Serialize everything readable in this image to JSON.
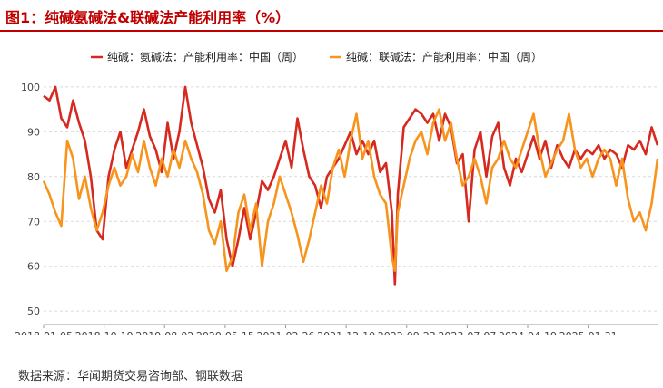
{
  "figure_title": "图1：纯碱氨碱法&联碱法产能利用率（%）",
  "source_note": "数据来源：华闻期货交易咨询部、钢联数据",
  "colors": {
    "title": "#c00000",
    "series1": "#d62a20",
    "series2": "#f7941d",
    "grid": "#d9d9d9"
  },
  "chart_data": {
    "type": "line",
    "title": "",
    "xlabel": "",
    "ylabel": "",
    "ylim": [
      47,
      102
    ],
    "xlim": [
      "2018-01-05",
      "2025-12-26"
    ],
    "yticks": [
      50,
      60,
      70,
      80,
      90,
      100
    ],
    "xticks": [
      "2018-01-05",
      "2018-10-19",
      "2019-08-02",
      "2020-05-15",
      "2021-02-26",
      "2021-12-10",
      "2022-09-23",
      "2023-07-07",
      "2024-04-19",
      "2025-01-31"
    ],
    "grid": "horizontal dashed",
    "legend_position": "top-center",
    "series": [
      {
        "name": "纯碱：氨碱法：产能利用率：中国（周）",
        "color": "#d62a20",
        "points": [
          [
            "2018-01-05",
            98
          ],
          [
            "2018-02-02",
            97
          ],
          [
            "2018-03-02",
            100
          ],
          [
            "2018-03-30",
            93
          ],
          [
            "2018-04-27",
            91
          ],
          [
            "2018-05-25",
            97
          ],
          [
            "2018-06-22",
            92
          ],
          [
            "2018-07-20",
            88
          ],
          [
            "2018-08-17",
            80
          ],
          [
            "2018-09-14",
            68
          ],
          [
            "2018-10-12",
            66
          ],
          [
            "2018-11-09",
            80
          ],
          [
            "2018-12-07",
            86
          ],
          [
            "2019-01-04",
            90
          ],
          [
            "2019-02-01",
            82
          ],
          [
            "2019-03-01",
            86
          ],
          [
            "2019-03-29",
            90
          ],
          [
            "2019-04-26",
            95
          ],
          [
            "2019-05-24",
            89
          ],
          [
            "2019-06-21",
            86
          ],
          [
            "2019-07-19",
            81
          ],
          [
            "2019-08-16",
            92
          ],
          [
            "2019-09-13",
            84
          ],
          [
            "2019-10-11",
            90
          ],
          [
            "2019-11-08",
            100
          ],
          [
            "2019-12-06",
            92
          ],
          [
            "2020-01-03",
            87
          ],
          [
            "2020-01-31",
            82
          ],
          [
            "2020-02-28",
            75
          ],
          [
            "2020-03-27",
            72
          ],
          [
            "2020-04-24",
            77
          ],
          [
            "2020-05-22",
            66
          ],
          [
            "2020-06-19",
            60
          ],
          [
            "2020-07-17",
            66
          ],
          [
            "2020-08-14",
            73
          ],
          [
            "2020-09-11",
            66
          ],
          [
            "2020-10-09",
            72
          ],
          [
            "2020-11-06",
            79
          ],
          [
            "2020-12-04",
            77
          ],
          [
            "2021-01-01",
            80
          ],
          [
            "2021-01-29",
            84
          ],
          [
            "2021-02-26",
            88
          ],
          [
            "2021-03-26",
            82
          ],
          [
            "2021-04-23",
            93
          ],
          [
            "2021-05-21",
            86
          ],
          [
            "2021-06-18",
            80
          ],
          [
            "2021-07-16",
            78
          ],
          [
            "2021-08-13",
            73
          ],
          [
            "2021-09-10",
            80
          ],
          [
            "2021-10-08",
            82
          ],
          [
            "2021-11-05",
            84
          ],
          [
            "2021-12-03",
            87
          ],
          [
            "2021-12-31",
            90
          ],
          [
            "2022-01-28",
            85
          ],
          [
            "2022-02-25",
            88
          ],
          [
            "2022-03-25",
            85
          ],
          [
            "2022-04-22",
            88
          ],
          [
            "2022-05-20",
            81
          ],
          [
            "2022-06-17",
            83
          ],
          [
            "2022-07-15",
            72
          ],
          [
            "2022-07-29",
            56
          ],
          [
            "2022-08-12",
            76
          ],
          [
            "2022-09-09",
            91
          ],
          [
            "2022-10-07",
            93
          ],
          [
            "2022-11-04",
            95
          ],
          [
            "2022-12-02",
            94
          ],
          [
            "2022-12-30",
            92
          ],
          [
            "2023-01-27",
            94
          ],
          [
            "2023-02-24",
            88
          ],
          [
            "2023-03-24",
            94
          ],
          [
            "2023-04-21",
            91
          ],
          [
            "2023-05-19",
            83
          ],
          [
            "2023-06-16",
            85
          ],
          [
            "2023-07-14",
            70
          ],
          [
            "2023-08-11",
            86
          ],
          [
            "2023-09-08",
            90
          ],
          [
            "2023-10-06",
            80
          ],
          [
            "2023-11-03",
            89
          ],
          [
            "2023-12-01",
            92
          ],
          [
            "2023-12-29",
            82
          ],
          [
            "2024-01-26",
            78
          ],
          [
            "2024-02-23",
            84
          ],
          [
            "2024-03-22",
            81
          ],
          [
            "2024-04-19",
            85
          ],
          [
            "2024-05-17",
            89
          ],
          [
            "2024-06-14",
            84
          ],
          [
            "2024-07-12",
            88
          ],
          [
            "2024-08-09",
            82
          ],
          [
            "2024-09-06",
            87
          ],
          [
            "2024-10-04",
            84
          ],
          [
            "2024-11-01",
            82
          ],
          [
            "2024-11-29",
            86
          ],
          [
            "2024-12-27",
            84
          ],
          [
            "2025-01-24",
            86
          ],
          [
            "2025-02-21",
            85
          ],
          [
            "2025-03-21",
            87
          ],
          [
            "2025-04-18",
            84
          ],
          [
            "2025-05-16",
            86
          ],
          [
            "2025-06-13",
            85
          ],
          [
            "2025-07-11",
            82
          ],
          [
            "2025-08-08",
            87
          ],
          [
            "2025-09-05",
            86
          ],
          [
            "2025-10-03",
            88
          ],
          [
            "2025-10-31",
            85
          ],
          [
            "2025-11-28",
            91
          ],
          [
            "2025-12-26",
            87
          ]
        ]
      },
      {
        "name": "纯碱：联碱法：产能利用率：中国（周）",
        "color": "#f7941d",
        "points": [
          [
            "2018-01-05",
            79
          ],
          [
            "2018-02-02",
            76
          ],
          [
            "2018-03-02",
            72
          ],
          [
            "2018-03-30",
            69
          ],
          [
            "2018-04-27",
            88
          ],
          [
            "2018-05-25",
            84
          ],
          [
            "2018-06-22",
            75
          ],
          [
            "2018-07-20",
            80
          ],
          [
            "2018-08-17",
            73
          ],
          [
            "2018-09-14",
            68
          ],
          [
            "2018-10-12",
            72
          ],
          [
            "2018-11-09",
            78
          ],
          [
            "2018-12-07",
            82
          ],
          [
            "2019-01-04",
            78
          ],
          [
            "2019-02-01",
            80
          ],
          [
            "2019-03-01",
            85
          ],
          [
            "2019-03-29",
            81
          ],
          [
            "2019-04-26",
            88
          ],
          [
            "2019-05-24",
            82
          ],
          [
            "2019-06-21",
            78
          ],
          [
            "2019-07-19",
            84
          ],
          [
            "2019-08-16",
            80
          ],
          [
            "2019-09-13",
            86
          ],
          [
            "2019-10-11",
            82
          ],
          [
            "2019-11-08",
            88
          ],
          [
            "2019-12-06",
            84
          ],
          [
            "2020-01-03",
            81
          ],
          [
            "2020-01-31",
            76
          ],
          [
            "2020-02-28",
            68
          ],
          [
            "2020-03-27",
            65
          ],
          [
            "2020-04-24",
            70
          ],
          [
            "2020-05-22",
            59
          ],
          [
            "2020-06-19",
            62
          ],
          [
            "2020-07-17",
            72
          ],
          [
            "2020-08-14",
            76
          ],
          [
            "2020-09-11",
            68
          ],
          [
            "2020-10-09",
            74
          ],
          [
            "2020-11-06",
            60
          ],
          [
            "2020-12-04",
            70
          ],
          [
            "2021-01-01",
            74
          ],
          [
            "2021-01-29",
            80
          ],
          [
            "2021-02-26",
            76
          ],
          [
            "2021-03-26",
            72
          ],
          [
            "2021-04-23",
            67
          ],
          [
            "2021-05-21",
            61
          ],
          [
            "2021-06-18",
            66
          ],
          [
            "2021-07-16",
            72
          ],
          [
            "2021-08-13",
            78
          ],
          [
            "2021-09-10",
            74
          ],
          [
            "2021-10-08",
            82
          ],
          [
            "2021-11-05",
            86
          ],
          [
            "2021-12-03",
            80
          ],
          [
            "2021-12-31",
            88
          ],
          [
            "2022-01-28",
            94
          ],
          [
            "2022-02-25",
            84
          ],
          [
            "2022-03-25",
            88
          ],
          [
            "2022-04-22",
            80
          ],
          [
            "2022-05-20",
            76
          ],
          [
            "2022-06-17",
            74
          ],
          [
            "2022-07-15",
            62
          ],
          [
            "2022-07-29",
            59
          ],
          [
            "2022-08-12",
            72
          ],
          [
            "2022-09-09",
            78
          ],
          [
            "2022-10-07",
            84
          ],
          [
            "2022-11-04",
            88
          ],
          [
            "2022-12-02",
            90
          ],
          [
            "2022-12-30",
            85
          ],
          [
            "2023-01-27",
            92
          ],
          [
            "2023-02-24",
            95
          ],
          [
            "2023-03-24",
            88
          ],
          [
            "2023-04-21",
            92
          ],
          [
            "2023-05-19",
            84
          ],
          [
            "2023-06-16",
            78
          ],
          [
            "2023-07-14",
            80
          ],
          [
            "2023-08-11",
            84
          ],
          [
            "2023-09-08",
            80
          ],
          [
            "2023-10-06",
            74
          ],
          [
            "2023-11-03",
            82
          ],
          [
            "2023-12-01",
            84
          ],
          [
            "2023-12-29",
            88
          ],
          [
            "2024-01-26",
            84
          ],
          [
            "2024-02-23",
            82
          ],
          [
            "2024-03-22",
            86
          ],
          [
            "2024-04-19",
            90
          ],
          [
            "2024-05-17",
            94
          ],
          [
            "2024-06-14",
            86
          ],
          [
            "2024-07-12",
            80
          ],
          [
            "2024-08-09",
            83
          ],
          [
            "2024-09-06",
            86
          ],
          [
            "2024-10-04",
            88
          ],
          [
            "2024-11-01",
            94
          ],
          [
            "2024-11-29",
            86
          ],
          [
            "2024-12-27",
            82
          ],
          [
            "2025-01-24",
            84
          ],
          [
            "2025-02-21",
            80
          ],
          [
            "2025-03-21",
            84
          ],
          [
            "2025-04-18",
            86
          ],
          [
            "2025-05-16",
            84
          ],
          [
            "2025-06-13",
            78
          ],
          [
            "2025-07-11",
            84
          ],
          [
            "2025-08-08",
            75
          ],
          [
            "2025-09-05",
            70
          ],
          [
            "2025-10-03",
            72
          ],
          [
            "2025-10-31",
            68
          ],
          [
            "2025-11-28",
            74
          ],
          [
            "2025-12-26",
            84
          ]
        ]
      }
    ]
  }
}
